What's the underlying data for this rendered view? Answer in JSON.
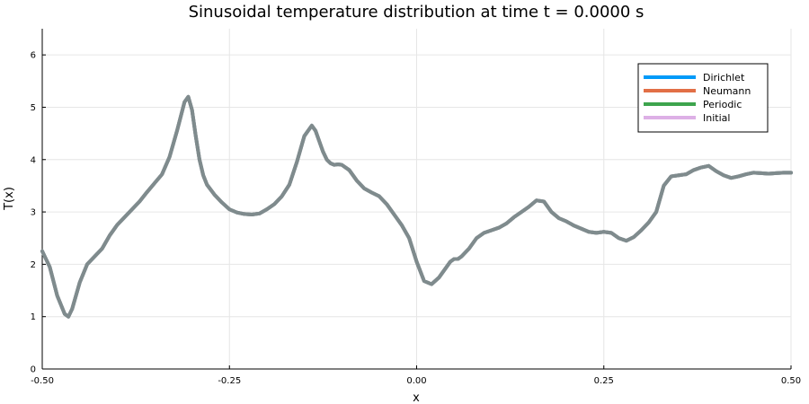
{
  "chart_data": {
    "type": "line",
    "title": "Sinusoidal temperature distribution at time t = 0.0000 s",
    "xlabel": "x",
    "ylabel": "T(x)",
    "xlim": [
      -0.5,
      0.5
    ],
    "ylim": [
      0,
      6.5
    ],
    "xticks": [
      -0.5,
      -0.25,
      0.0,
      0.25,
      0.5
    ],
    "xtick_labels": [
      "-0.50",
      "-0.25",
      "0.00",
      "0.25",
      "0.50"
    ],
    "yticks": [
      0,
      1,
      2,
      3,
      4,
      5,
      6
    ],
    "ytick_labels": [
      "0",
      "1",
      "2",
      "3",
      "4",
      "5",
      "6"
    ],
    "grid": true,
    "legend_position": "top-right",
    "x": [
      -0.5,
      -0.49,
      -0.48,
      -0.47,
      -0.465,
      -0.46,
      -0.45,
      -0.44,
      -0.43,
      -0.42,
      -0.41,
      -0.4,
      -0.39,
      -0.38,
      -0.37,
      -0.36,
      -0.35,
      -0.34,
      -0.33,
      -0.32,
      -0.31,
      -0.305,
      -0.3,
      -0.295,
      -0.29,
      -0.285,
      -0.28,
      -0.27,
      -0.26,
      -0.25,
      -0.24,
      -0.23,
      -0.22,
      -0.21,
      -0.2,
      -0.19,
      -0.18,
      -0.17,
      -0.16,
      -0.15,
      -0.14,
      -0.135,
      -0.13,
      -0.125,
      -0.12,
      -0.115,
      -0.11,
      -0.105,
      -0.1,
      -0.09,
      -0.08,
      -0.07,
      -0.06,
      -0.05,
      -0.04,
      -0.03,
      -0.02,
      -0.01,
      0.0,
      0.01,
      0.02,
      0.03,
      0.04,
      0.045,
      0.05,
      0.055,
      0.06,
      0.07,
      0.08,
      0.09,
      0.1,
      0.11,
      0.12,
      0.13,
      0.14,
      0.15,
      0.16,
      0.17,
      0.18,
      0.19,
      0.2,
      0.21,
      0.22,
      0.23,
      0.24,
      0.25,
      0.26,
      0.27,
      0.28,
      0.29,
      0.3,
      0.31,
      0.32,
      0.33,
      0.34,
      0.35,
      0.36,
      0.37,
      0.38,
      0.39,
      0.4,
      0.41,
      0.42,
      0.43,
      0.44,
      0.45,
      0.46,
      0.47,
      0.48,
      0.49,
      0.5
    ],
    "series": [
      {
        "name": "Dirichlet",
        "color": "#009af9",
        "values": [
          2.25,
          1.95,
          1.4,
          1.05,
          1.0,
          1.15,
          1.65,
          2.0,
          2.15,
          2.3,
          2.55,
          2.75,
          2.9,
          3.05,
          3.2,
          3.38,
          3.55,
          3.72,
          4.05,
          4.55,
          5.1,
          5.2,
          4.95,
          4.45,
          4.0,
          3.7,
          3.52,
          3.33,
          3.18,
          3.05,
          2.99,
          2.96,
          2.95,
          2.97,
          3.05,
          3.15,
          3.3,
          3.52,
          3.95,
          4.45,
          4.65,
          4.55,
          4.35,
          4.15,
          4.0,
          3.93,
          3.9,
          3.91,
          3.9,
          3.8,
          3.6,
          3.45,
          3.37,
          3.3,
          3.15,
          2.95,
          2.75,
          2.5,
          2.05,
          1.68,
          1.62,
          1.75,
          1.95,
          2.05,
          2.1,
          2.1,
          2.15,
          2.3,
          2.5,
          2.6,
          2.65,
          2.7,
          2.78,
          2.9,
          3.0,
          3.1,
          3.22,
          3.2,
          3.0,
          2.88,
          2.82,
          2.74,
          2.68,
          2.62,
          2.6,
          2.62,
          2.6,
          2.5,
          2.45,
          2.52,
          2.65,
          2.8,
          3.0,
          3.5,
          3.68,
          3.7,
          3.72,
          3.8,
          3.85,
          3.88,
          3.78,
          3.7,
          3.65,
          3.68,
          3.72,
          3.75,
          3.74,
          3.73,
          3.74,
          3.75,
          3.75
        ]
      },
      {
        "name": "Neumann",
        "color": "#e26f46",
        "values": "same"
      },
      {
        "name": "Periodic",
        "color": "#3da44d",
        "values": "same"
      },
      {
        "name": "Initial",
        "color": "#c271d2",
        "values": "same"
      }
    ],
    "rendered_line_color": "#7f8b8d"
  }
}
